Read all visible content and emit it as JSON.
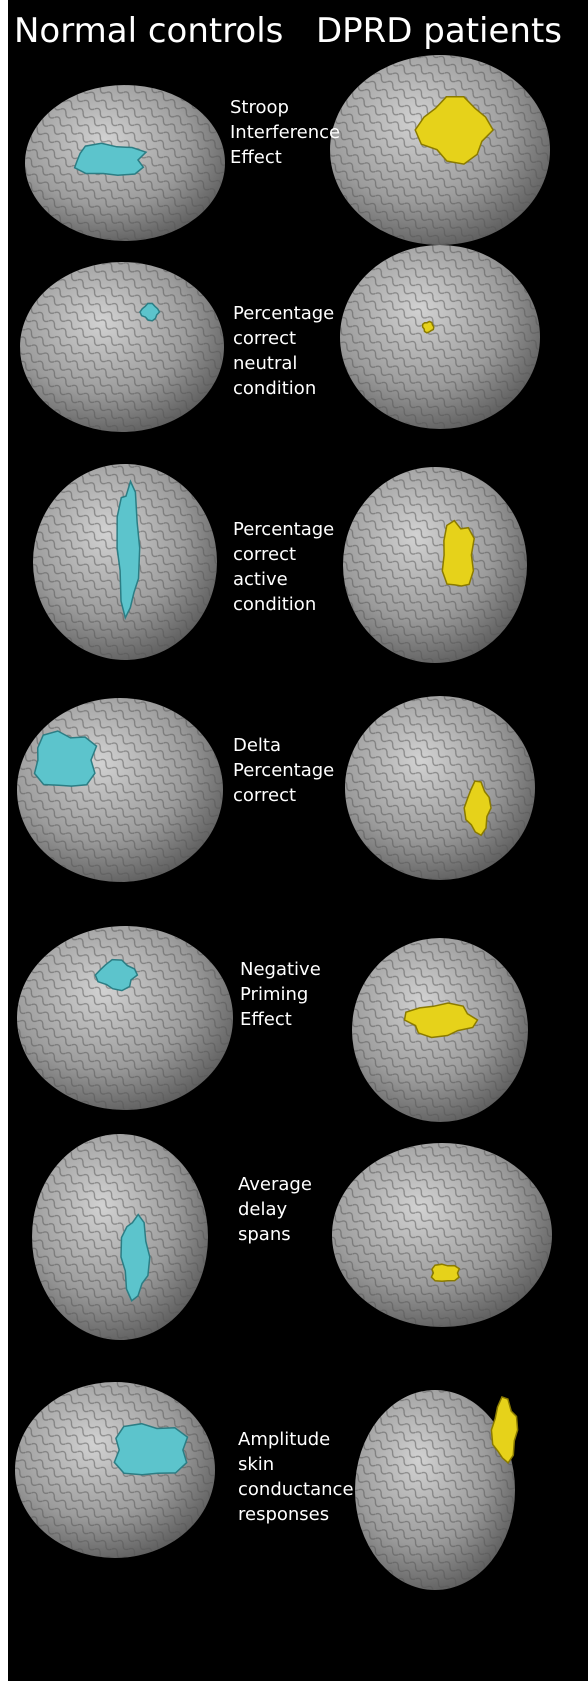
{
  "header": {
    "left": "Normal controls",
    "right": "DPRD patients"
  },
  "rows": [
    {
      "label": [
        "Stroop",
        "Interference",
        "Effect"
      ]
    },
    {
      "label": [
        "Percentage",
        "correct",
        "neutral",
        "condition"
      ]
    },
    {
      "label": [
        "Percentage",
        "correct",
        "active",
        "condition"
      ]
    },
    {
      "label": [
        "Delta",
        "Percentage",
        "correct"
      ]
    },
    {
      "label": [
        "Negative",
        "Priming",
        "Effect"
      ]
    },
    {
      "label": [
        "Average",
        "delay",
        "spans"
      ]
    },
    {
      "label": [
        "Amplitude",
        "skin",
        "conductance",
        "responses"
      ]
    }
  ]
}
